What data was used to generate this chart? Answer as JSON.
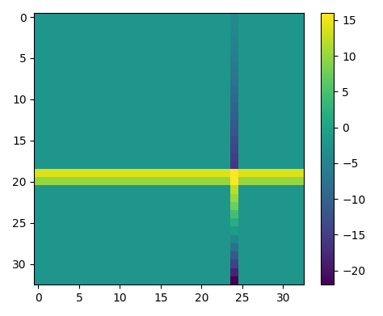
{
  "grid_rows": 33,
  "grid_cols": 33,
  "background_value": -2.0,
  "row_band_row": 20,
  "row_band_value_main": 14.0,
  "row_band_value_secondary": 10.0,
  "col_band_col": 24,
  "intersection_value": 16.0,
  "vmin": -22,
  "vmax": 16,
  "cmap": "viridis",
  "figsize": [
    4.74,
    3.91
  ],
  "dpi": 100,
  "xticks": [
    0,
    5,
    10,
    15,
    20,
    25,
    30
  ],
  "yticks": [
    0,
    5,
    10,
    15,
    20,
    25,
    30
  ]
}
